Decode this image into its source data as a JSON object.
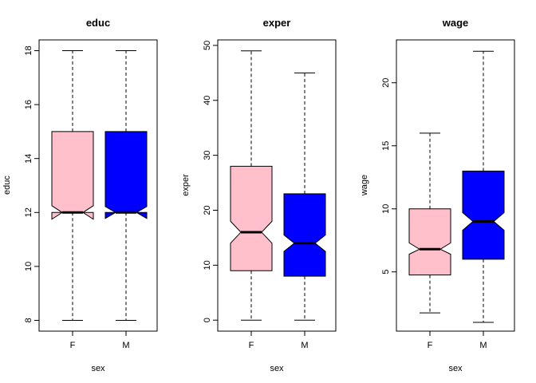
{
  "chart_data": [
    {
      "type": "boxplot",
      "title": "educ",
      "xlabel": "sex",
      "ylabel": "educ",
      "categories": [
        "F",
        "M"
      ],
      "ylim": [
        7.6,
        18.4
      ],
      "yticks": [
        8,
        10,
        12,
        14,
        16,
        18
      ],
      "notched": true,
      "boxes": [
        {
          "category": "F",
          "min": 8,
          "q1": 12,
          "median": 12,
          "q3": 15,
          "max": 18,
          "notch_low": 11.75,
          "notch_high": 12.25,
          "color": "#FFC0CB"
        },
        {
          "category": "M",
          "min": 8,
          "q1": 12,
          "median": 12,
          "q3": 15,
          "max": 18,
          "notch_low": 11.78,
          "notch_high": 12.22,
          "color": "#0000FF"
        }
      ]
    },
    {
      "type": "boxplot",
      "title": "exper",
      "xlabel": "sex",
      "ylabel": "exper",
      "categories": [
        "F",
        "M"
      ],
      "ylim": [
        -2,
        51
      ],
      "yticks": [
        0,
        10,
        20,
        30,
        40,
        50
      ],
      "notched": true,
      "boxes": [
        {
          "category": "F",
          "min": 0,
          "q1": 9,
          "median": 16,
          "q3": 28,
          "max": 49,
          "notch_low": 14,
          "notch_high": 18,
          "color": "#FFC0CB"
        },
        {
          "category": "M",
          "min": 0,
          "q1": 8,
          "median": 14,
          "q3": 23,
          "max": 45,
          "notch_low": 12.5,
          "notch_high": 15.5,
          "color": "#0000FF"
        }
      ]
    },
    {
      "type": "boxplot",
      "title": "wage",
      "xlabel": "sex",
      "ylabel": "wage",
      "categories": [
        "F",
        "M"
      ],
      "ylim": [
        0.3,
        23.4
      ],
      "yticks": [
        5,
        10,
        15,
        20
      ],
      "notched": true,
      "boxes": [
        {
          "category": "F",
          "min": 1.75,
          "q1": 4.75,
          "median": 6.8,
          "q3": 10,
          "max": 16,
          "notch_low": 6.4,
          "notch_high": 7.3,
          "color": "#FFC0CB"
        },
        {
          "category": "M",
          "min": 1.0,
          "q1": 6.0,
          "median": 9.0,
          "q3": 13,
          "max": 22.5,
          "notch_low": 8.3,
          "notch_high": 9.7,
          "color": "#0000FF"
        }
      ]
    }
  ]
}
